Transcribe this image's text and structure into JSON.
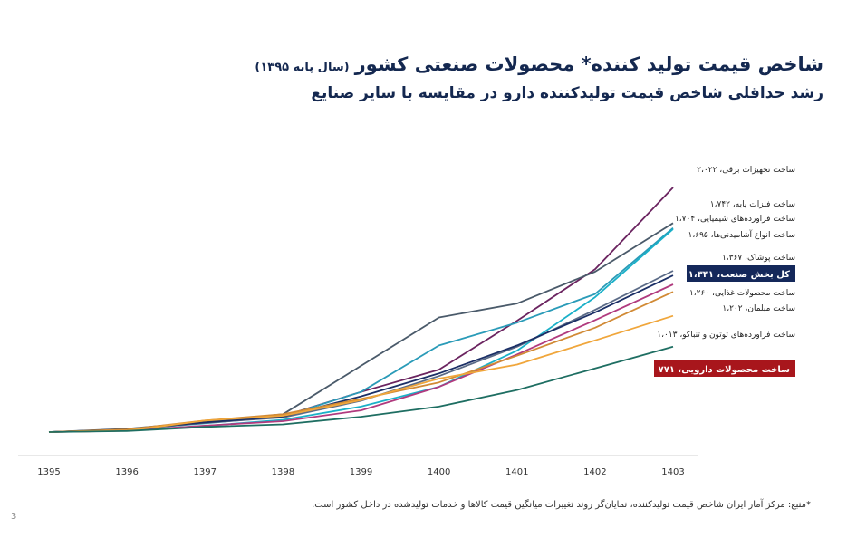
{
  "header": {
    "title": "شاخص قیمت تولید کننده* محصولات صنعتی کشور",
    "title_base": "(سال پایه ۱۳۹۵)",
    "subtitle": "رشد حداقلی شاخص قیمت تولیدکننده دارو در مقایسه با سایر صنایع"
  },
  "footnote": "*منبع: مرکز آمار ایران    شاخص قیمت تولیدکننده، نمایان‌گر روند تغییرات میانگین قیمت کالاها و خدمات تولیدشده در داخل کشور است.",
  "page_number": "3",
  "chart_data": {
    "type": "line",
    "x": [
      "1395",
      "1396",
      "1397",
      "1398",
      "1399",
      "1400",
      "1401",
      "1402",
      "1403"
    ],
    "ylim": [
      0,
      2022
    ],
    "grid": false,
    "series": [
      {
        "label": "ساخت تجهیزات برقی، ۲،۰۲۲",
        "color": "#6b2460",
        "values": [
          100,
          118,
          178,
          226,
          415,
          590,
          975,
          1380,
          2022
        ],
        "label_style": "plain"
      },
      {
        "label": "ساخت فلزات پایه، ۱،۷۴۲",
        "color": "#4a5a6a",
        "values": [
          100,
          125,
          180,
          240,
          620,
          1000,
          1110,
          1360,
          1742
        ],
        "label_style": "plain"
      },
      {
        "label": "ساخت فراورده‌های شیمیایی، ۱،۷۰۴",
        "color": "#2a9bb8",
        "values": [
          100,
          120,
          168,
          222,
          415,
          780,
          960,
          1185,
          1704
        ],
        "label_style": "plain"
      },
      {
        "label": "ساخت انواع آشامیدنی‌ها، ۱،۶۹۵",
        "color": "#1ab0c8",
        "values": [
          100,
          112,
          148,
          196,
          300,
          455,
          740,
          1160,
          1695
        ],
        "label_style": "plain"
      },
      {
        "label": "ساخت پوشاک، ۱،۳۶۷",
        "color": "#5a6a86",
        "values": [
          100,
          118,
          172,
          214,
          345,
          540,
          770,
          1060,
          1367
        ],
        "label_style": "plain"
      },
      {
        "label": "کل بخش صنعت، ۱،۳۳۱",
        "color": "#1b2f66",
        "values": [
          100,
          122,
          175,
          222,
          380,
          560,
          780,
          1040,
          1331
        ],
        "label_style": "boxed",
        "box_color": "#14285a"
      },
      {
        "label": "ساخت محصولات غذایی، ۱،۲۶۰",
        "color": "#b03a7e",
        "values": [
          100,
          110,
          150,
          185,
          270,
          455,
          710,
          980,
          1260
        ],
        "label_style": "plain"
      },
      {
        "label": "ساخت مبلمان، ۱،۲۰۲",
        "color": "#d18a35",
        "values": [
          100,
          120,
          190,
          240,
          360,
          490,
          700,
          920,
          1202
        ],
        "label_style": "plain"
      },
      {
        "label": "ساخت فراورده‌های توتون و تنباکو، ۱،۰۱۳",
        "color": "#f0a63b",
        "values": [
          100,
          110,
          190,
          228,
          350,
          520,
          630,
          820,
          1013
        ],
        "label_style": "plain"
      },
      {
        "label": "ساخت محصولات دارویی، ۷۷۱",
        "color": "#1e6e62",
        "values": [
          100,
          108,
          140,
          160,
          220,
          300,
          430,
          600,
          771
        ],
        "label_style": "boxed",
        "box_color": "#a8161c"
      }
    ]
  }
}
